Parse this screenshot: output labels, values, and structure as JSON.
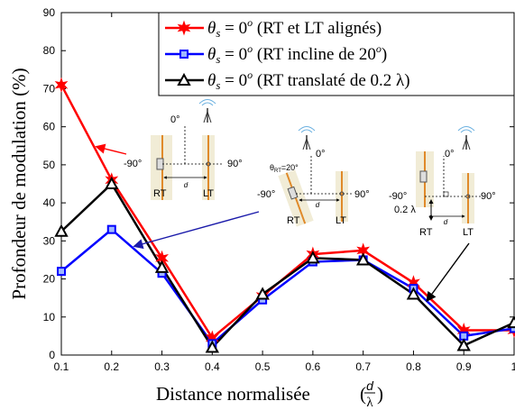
{
  "chart_data": {
    "type": "line",
    "xlabel": "Distance normalisée",
    "xlabel_frac_num": "d",
    "xlabel_frac_den": "λ",
    "ylabel": "Profondeur de modulation (%)",
    "xlim": [
      0.1,
      1.0
    ],
    "ylim": [
      0,
      90
    ],
    "x_ticks": [
      "0.1",
      "0.2",
      "0.3",
      "0.4",
      "0.5",
      "0.6",
      "0.7",
      "0.8",
      "0.9",
      "1"
    ],
    "y_ticks": [
      "0",
      "10",
      "20",
      "30",
      "40",
      "50",
      "60",
      "70",
      "80",
      "90"
    ],
    "x": [
      0.1,
      0.2,
      0.3,
      0.4,
      0.5,
      0.6,
      0.7,
      0.8,
      0.9,
      1.0
    ],
    "grid": false,
    "legend_position": "top-right",
    "series": [
      {
        "name": "θs = 0° (RT et LT alignés)",
        "legend_math": "θ",
        "legend_sub": "s",
        "legend_eq": " = 0",
        "legend_sup": "o",
        "legend_desc": " (RT et LT alignés)",
        "color": "#ff0000",
        "marker": "star",
        "values": [
          71,
          46,
          25.5,
          4.5,
          15.5,
          26.5,
          27.5,
          19,
          6.5,
          6.5
        ]
      },
      {
        "name": "θs = 0° (RT incline de 20°)",
        "legend_math": "θ",
        "legend_sub": "s",
        "legend_eq": " = 0",
        "legend_sup": "o",
        "legend_desc": " (RT incline de 20",
        "legend_desc_sup": "o",
        "legend_desc_end": ")",
        "color": "#0000ff",
        "marker": "square",
        "values": [
          22,
          33,
          21.5,
          3,
          14.5,
          24.5,
          25,
          17.5,
          5,
          7
        ]
      },
      {
        "name": "θs = 0° (RT translaté de 0.2 λ)",
        "legend_math": "θ",
        "legend_sub": "s",
        "legend_eq": " = 0",
        "legend_sup": "o",
        "legend_desc": " (RT translaté de 0.2 λ)",
        "color": "#000000",
        "marker": "triangle",
        "values": [
          32.5,
          45,
          23,
          2,
          16,
          25.5,
          25,
          16,
          2.5,
          8.5
        ]
      }
    ]
  },
  "insets": {
    "inset1": {
      "angle_top": "0°",
      "left": "-90°",
      "right": "90°",
      "rt": "RT",
      "lt": "LT",
      "d": "d"
    },
    "inset2": {
      "angle_top": "0°",
      "left": "-90°",
      "right": "90°",
      "rt": "RT",
      "lt": "LT",
      "d": "d",
      "theta": "θ",
      "theta_sub": "RT",
      "theta_val": "=20°"
    },
    "inset3": {
      "angle_top": "0°",
      "left": "-90°",
      "right": "90°",
      "rt": "RT",
      "lt": "LT",
      "d": "d",
      "shift": "0.2 λ"
    }
  },
  "colors": {
    "arrow_red": "#ff0000",
    "arrow_blue": "#1a1aaa",
    "arrow_black": "#000000",
    "panel": "#f1ecd6",
    "element": "#e08a2a"
  }
}
